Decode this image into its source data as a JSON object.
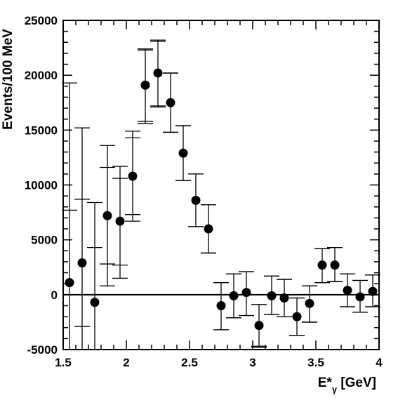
{
  "chart_data": {
    "type": "scatter",
    "title": "",
    "xlabel": {
      "base": "E*",
      "sub": "γ",
      "unit": " [GeV]"
    },
    "ylabel": "Events/100 MeV",
    "xlim": [
      1.5,
      4.0
    ],
    "ylim": [
      -5000,
      25000
    ],
    "x_ticks": [
      1.5,
      2,
      2.5,
      3,
      3.5,
      4
    ],
    "x_tick_labels": [
      "1.5",
      "2",
      "2.5",
      "3",
      "3.5",
      "4"
    ],
    "y_ticks": [
      -5000,
      0,
      5000,
      10000,
      15000,
      20000,
      25000
    ],
    "y_tick_labels": [
      "-5000",
      "0",
      "5000",
      "10000",
      "15000",
      "20000",
      "25000"
    ],
    "reference_line_y": 0,
    "grid": false,
    "legend": "none",
    "series": [
      {
        "marker": "filled-circle",
        "color": "#000000",
        "points": [
          {
            "x": 1.55,
            "y": 1100,
            "stat": [
              -5000,
              7700
            ],
            "total": [
              -5000,
              19300
            ]
          },
          {
            "x": 1.65,
            "y": 2900,
            "stat": [
              -2900,
              8700
            ],
            "total": [
              -5000,
              15200
            ]
          },
          {
            "x": 1.75,
            "y": -700,
            "stat": [
              -5000,
              4300
            ],
            "total": [
              -5000,
              8400
            ]
          },
          {
            "x": 1.85,
            "y": 7200,
            "stat": [
              2800,
              11600
            ],
            "total": [
              800,
              13600
            ]
          },
          {
            "x": 1.95,
            "y": 6700,
            "stat": [
              2700,
              10600
            ],
            "total": [
              1500,
              11700
            ]
          },
          {
            "x": 2.05,
            "y": 10800,
            "stat": [
              7300,
              14300
            ],
            "total": [
              6700,
              14900
            ]
          },
          {
            "x": 2.15,
            "y": 19100,
            "stat": [
              15800,
              22300
            ],
            "total": [
              15600,
              22400
            ]
          },
          {
            "x": 2.25,
            "y": 20200,
            "stat": [
              17200,
              23100
            ],
            "total": [
              17100,
              23200
            ]
          },
          {
            "x": 2.35,
            "y": 17500,
            "stat": [
              14800,
              20200
            ],
            "total": [
              14800,
              20200
            ]
          },
          {
            "x": 2.45,
            "y": 12900,
            "stat": [
              10400,
              15400
            ],
            "total": [
              10400,
              15400
            ]
          },
          {
            "x": 2.55,
            "y": 8600,
            "stat": [
              6200,
              11000
            ],
            "total": [
              6200,
              11000
            ]
          },
          {
            "x": 2.65,
            "y": 6000,
            "stat": [
              3800,
              8200
            ],
            "total": [
              3800,
              8200
            ]
          },
          {
            "x": 2.75,
            "y": -1000,
            "stat": [
              -3200,
              1100
            ],
            "total": [
              -3200,
              1100
            ]
          },
          {
            "x": 2.85,
            "y": -100,
            "stat": [
              -2100,
              1900
            ],
            "total": [
              -2100,
              1900
            ]
          },
          {
            "x": 2.95,
            "y": 200,
            "stat": [
              -1900,
              2100
            ],
            "total": [
              -1900,
              2100
            ]
          },
          {
            "x": 3.05,
            "y": -2800,
            "stat": [
              -4700,
              -900
            ],
            "total": [
              -4800,
              -900
            ]
          },
          {
            "x": 3.15,
            "y": -100,
            "stat": [
              -1800,
              1700
            ],
            "total": [
              -1800,
              1700
            ]
          },
          {
            "x": 3.25,
            "y": -300,
            "stat": [
              -2000,
              1400
            ],
            "total": [
              -2000,
              1400
            ]
          },
          {
            "x": 3.35,
            "y": -2000,
            "stat": [
              -3700,
              -300
            ],
            "total": [
              -3700,
              -300
            ]
          },
          {
            "x": 3.45,
            "y": -800,
            "stat": [
              -2500,
              800
            ],
            "total": [
              -2500,
              800
            ]
          },
          {
            "x": 3.55,
            "y": 2700,
            "stat": [
              1100,
              4200
            ],
            "total": [
              1100,
              4200
            ]
          },
          {
            "x": 3.65,
            "y": 2700,
            "stat": [
              1200,
              4300
            ],
            "total": [
              1200,
              4300
            ]
          },
          {
            "x": 3.75,
            "y": 400,
            "stat": [
              -1100,
              1900
            ],
            "total": [
              -1100,
              1900
            ]
          },
          {
            "x": 3.85,
            "y": -200,
            "stat": [
              -1600,
              1300
            ],
            "total": [
              -1600,
              1300
            ]
          },
          {
            "x": 3.95,
            "y": 300,
            "stat": [
              -1100,
              1800
            ],
            "total": [
              -1100,
              1800
            ]
          }
        ]
      }
    ]
  }
}
